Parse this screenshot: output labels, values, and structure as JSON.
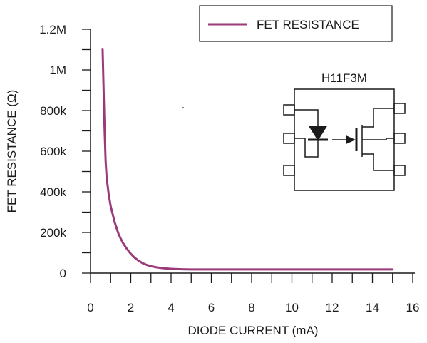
{
  "chart_data": {
    "type": "line",
    "xlabel": "DIODE CURRENT (mA)",
    "ylabel": "FET RESISTANCE (Ω)",
    "xlim": [
      0,
      16
    ],
    "ylim": [
      0,
      1200000
    ],
    "x_ticks": [
      0,
      2,
      4,
      6,
      8,
      10,
      12,
      14,
      16
    ],
    "x_tick_labels": [
      "0",
      "2",
      "4",
      "6",
      "8",
      "10",
      "12",
      "14",
      "16"
    ],
    "y_ticks": [
      0,
      200000,
      400000,
      600000,
      800000,
      1000000,
      1200000
    ],
    "y_tick_labels": [
      "0",
      "200k",
      "400k",
      "600k",
      "800k",
      "1M",
      "1.2M"
    ],
    "legend_position": "top-right",
    "series": [
      {
        "name": "FET RESISTANCE",
        "color": "#9b3a7a",
        "x": [
          0.6,
          0.65,
          0.7,
          0.75,
          0.8,
          0.9,
          1.0,
          1.2,
          1.4,
          1.6,
          1.8,
          2.0,
          2.2,
          2.4,
          2.6,
          2.8,
          3.0,
          3.3,
          3.6,
          4.0,
          4.5,
          5.0,
          6.0,
          8.0,
          10.0,
          12.0,
          14.0,
          15.0
        ],
        "values": [
          1100000,
          900000,
          700000,
          550000,
          470000,
          390000,
          330000,
          250000,
          190000,
          150000,
          120000,
          95000,
          75000,
          60000,
          48000,
          40000,
          34000,
          28000,
          24000,
          21000,
          19000,
          18000,
          18000,
          18000,
          18000,
          18000,
          18000,
          18000
        ]
      }
    ]
  },
  "inset": {
    "title": "H11F3M",
    "color": "#1a1a1a"
  }
}
